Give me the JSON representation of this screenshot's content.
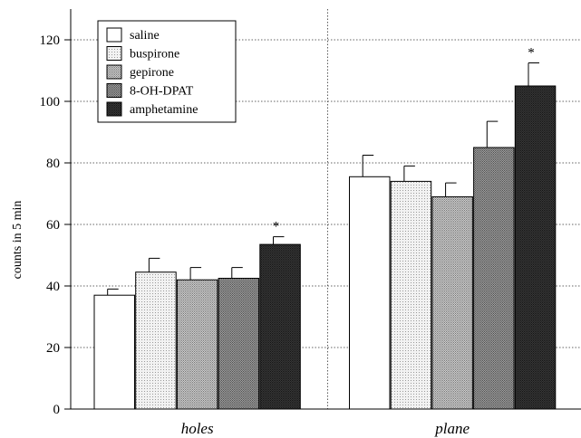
{
  "chart_data": {
    "type": "bar",
    "title": "",
    "xlabel": "",
    "ylabel": "counts in 5 min",
    "ylim": [
      0,
      130
    ],
    "yticks": [
      0,
      20,
      40,
      60,
      80,
      100,
      120
    ],
    "grid": true,
    "legend_position": "top-left",
    "categories": [
      "holes",
      "plane"
    ],
    "series": [
      {
        "name": "saline",
        "values": [
          37,
          75.5
        ],
        "errors": [
          2,
          7
        ],
        "color": "#ffffff",
        "pattern": "none"
      },
      {
        "name": "buspirone",
        "values": [
          44.5,
          74
        ],
        "errors": [
          4.5,
          5
        ],
        "color": "#e6e6e6",
        "pattern": "light"
      },
      {
        "name": "gepirone",
        "values": [
          42,
          69
        ],
        "errors": [
          4,
          4.5
        ],
        "color": "#bdbdbd",
        "pattern": "medium"
      },
      {
        "name": "8-OH-DPAT",
        "values": [
          42.5,
          85
        ],
        "errors": [
          3.5,
          8.5
        ],
        "color": "#8c8c8c",
        "pattern": "dark"
      },
      {
        "name": "amphetamine",
        "values": [
          53.5,
          105
        ],
        "errors": [
          2.5,
          7.5
        ],
        "color": "#3a3a3a",
        "pattern": "darkest"
      }
    ],
    "annotations": [
      {
        "text": "*",
        "category": "holes",
        "series": "amphetamine"
      },
      {
        "text": "*",
        "category": "plane",
        "series": "amphetamine"
      }
    ]
  }
}
